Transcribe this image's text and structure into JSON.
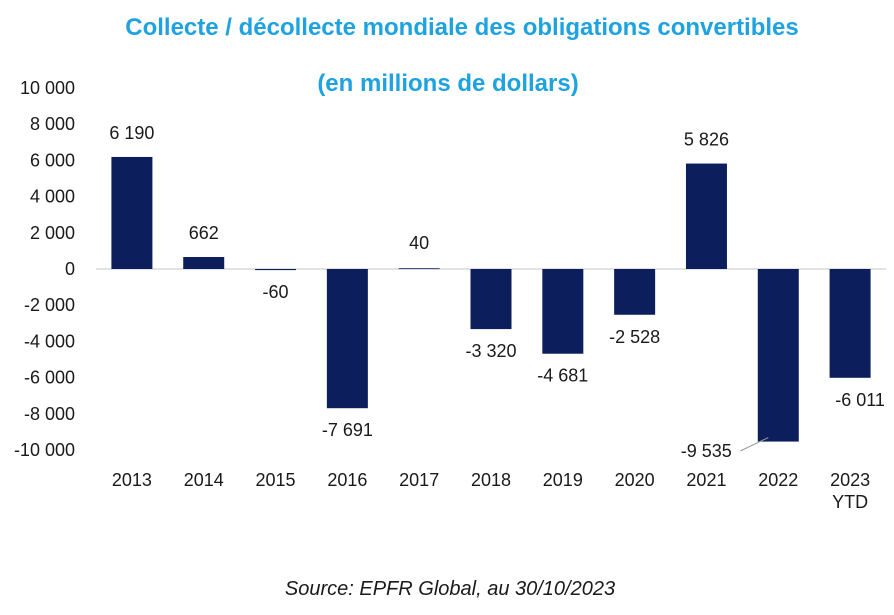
{
  "chart_data": {
    "type": "bar",
    "title": "Collecte / décollecte mondiale des obligations convertibles",
    "subtitle": "(en millions de dollars)",
    "categories": [
      "2013",
      "2014",
      "2015",
      "2016",
      "2017",
      "2018",
      "2019",
      "2020",
      "2021",
      "2022",
      "2023\nYTD"
    ],
    "values": [
      6190,
      662,
      -60,
      -7691,
      40,
      -3320,
      -4681,
      -2528,
      5826,
      -9535,
      -6011
    ],
    "data_labels": [
      "6 190",
      "662",
      "-60",
      "-7 691",
      "40",
      "-3 320",
      "-4 681",
      "-2 528",
      "5 826",
      "-9 535",
      "-6 011"
    ],
    "yticks": [
      "10 000",
      "8 000",
      "6 000",
      "4 000",
      "2 000",
      "0",
      "-2 000",
      "-4 000",
      "-6 000",
      "-8 000",
      "-10 000"
    ],
    "ylim": [
      -10000,
      10000
    ],
    "xlabel": "",
    "ylabel": "",
    "grid": false,
    "bar_color": "#0c1f5c",
    "title_color": "#1fa2e0"
  },
  "source": "Source: EPFR Global, au 30/10/2023"
}
